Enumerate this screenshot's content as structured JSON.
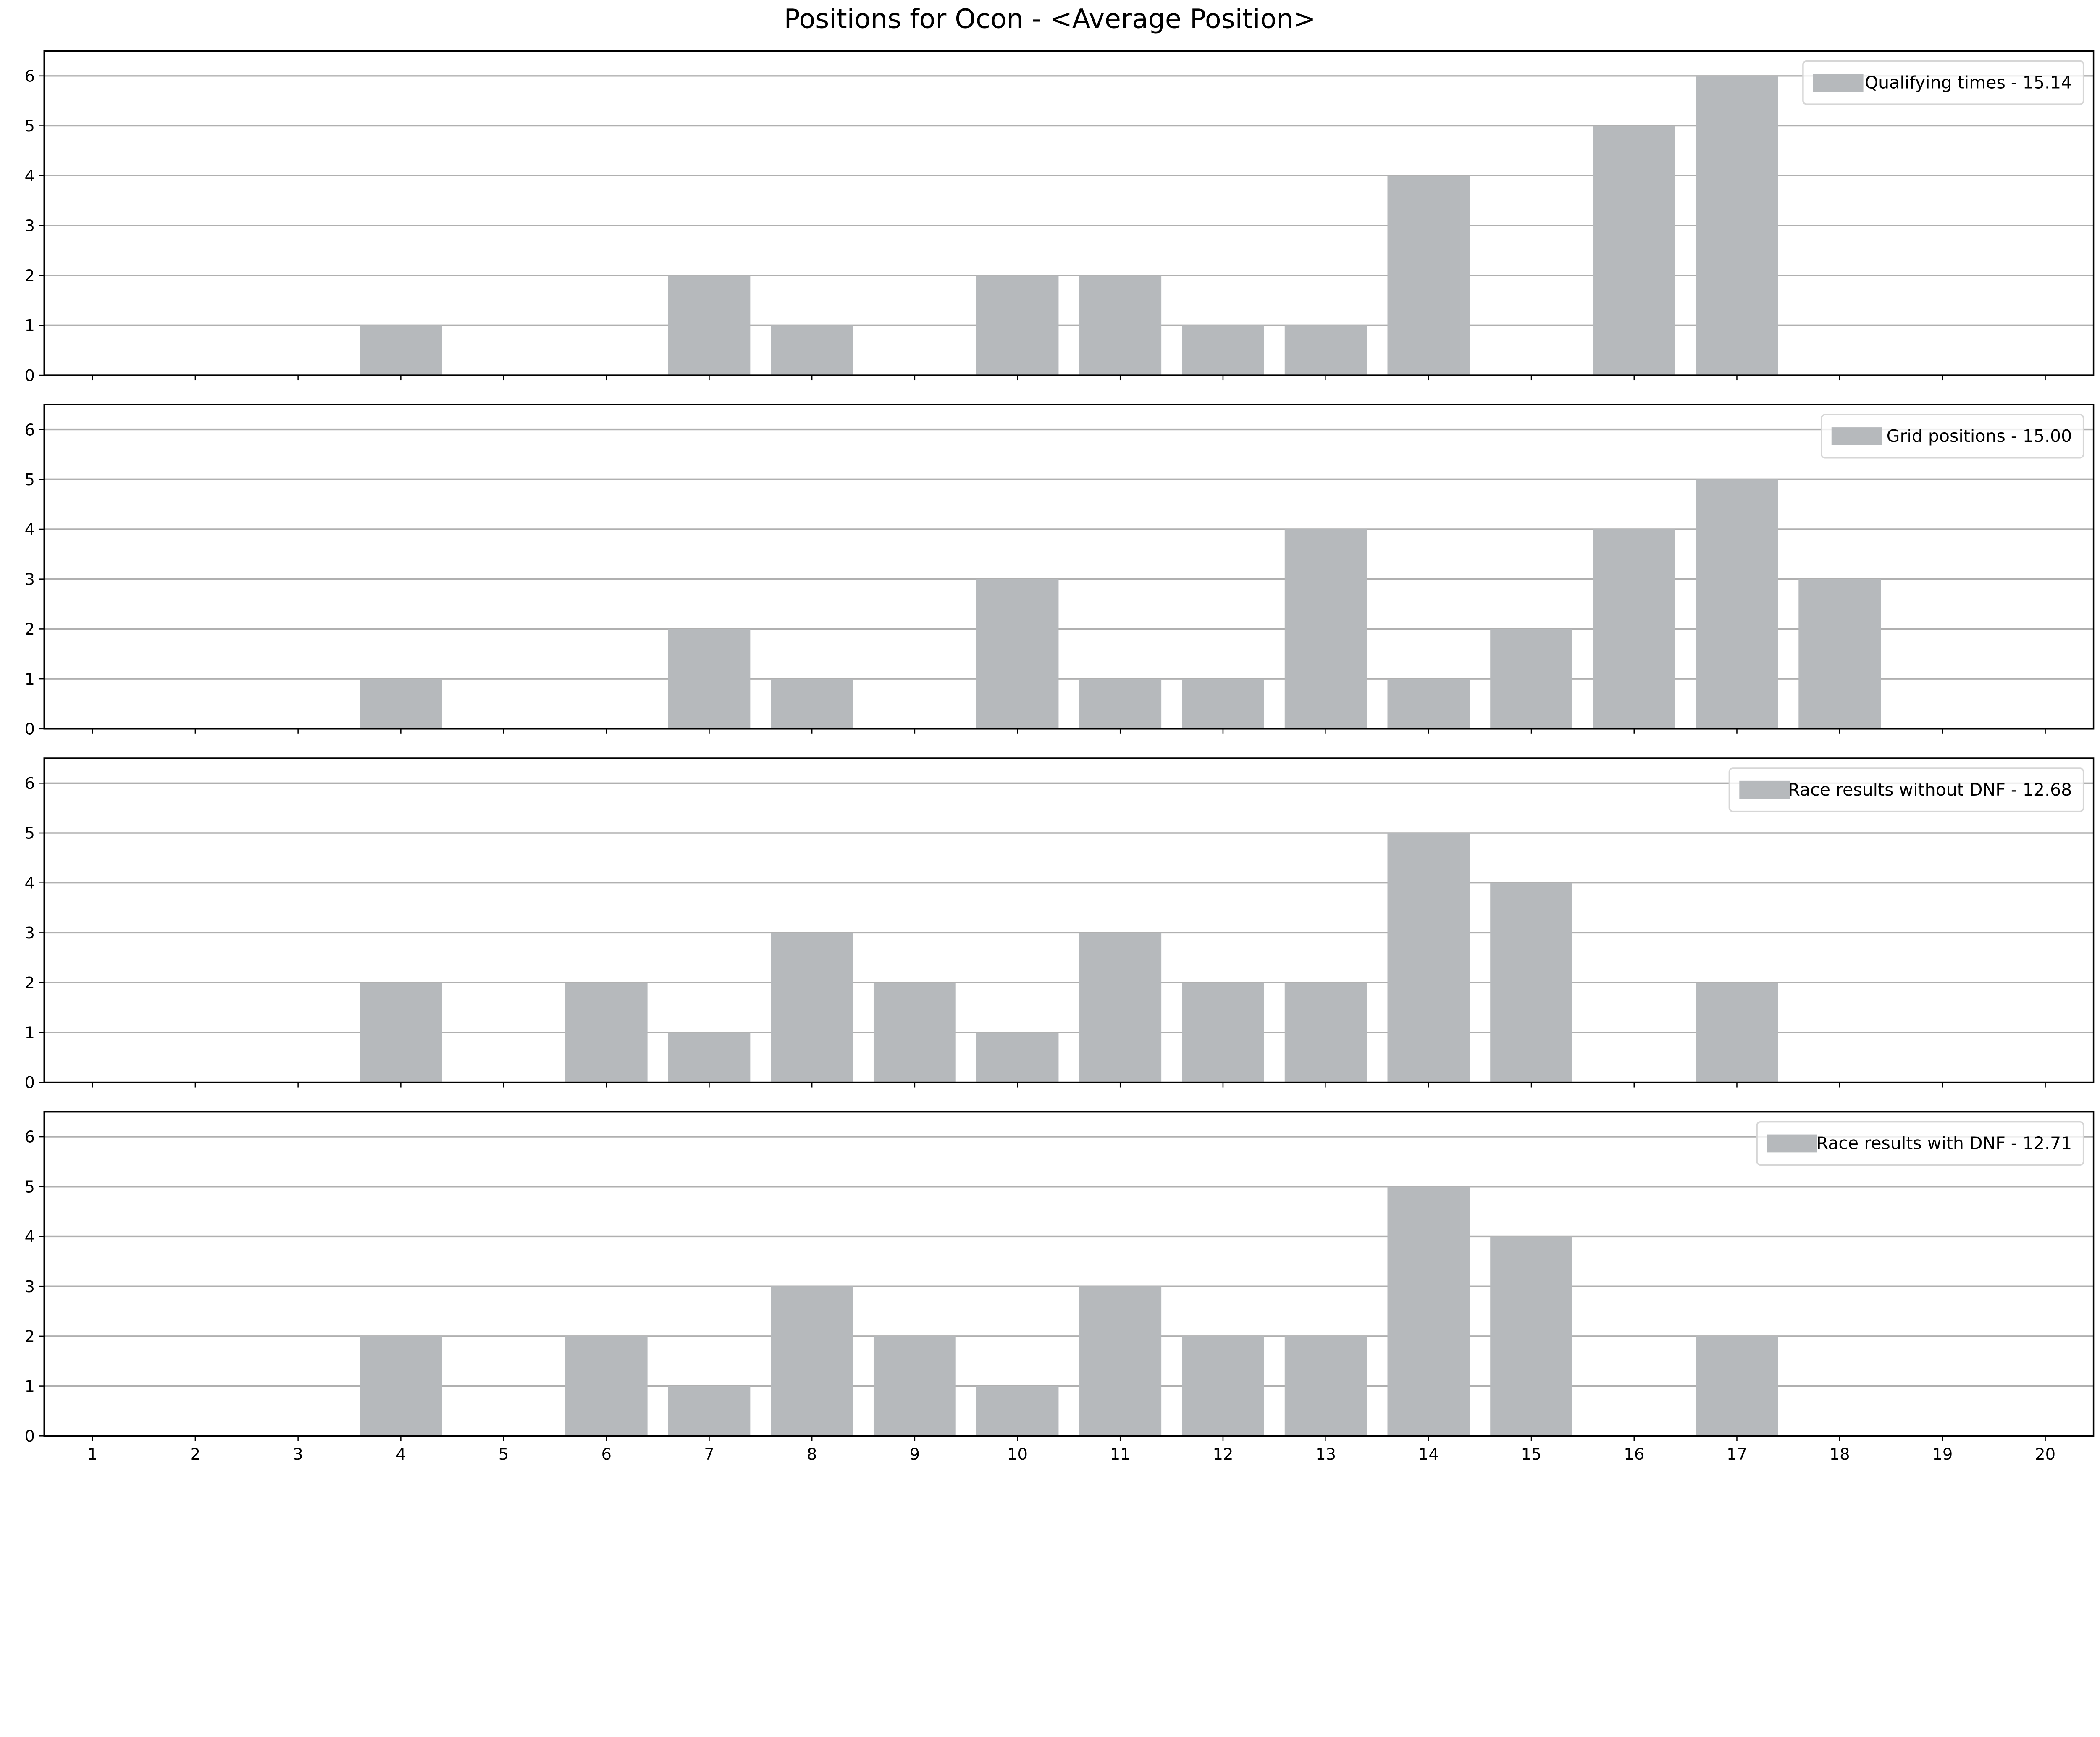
{
  "chart_data": {
    "title": "Positions for Ocon - <Average Position>",
    "type": "bar",
    "bar_color": "#b6b9bc",
    "grid": "horizontal",
    "legend_placement": "top-right",
    "xlim": [
      0.5,
      20.5
    ],
    "ylim": [
      0,
      6.5
    ],
    "x_ticks": [
      1,
      2,
      3,
      4,
      5,
      6,
      7,
      8,
      9,
      10,
      11,
      12,
      13,
      14,
      15,
      16,
      17,
      18,
      19,
      20
    ],
    "y_ticks": [
      0,
      1,
      2,
      3,
      4,
      5,
      6
    ],
    "panels": [
      {
        "legend": "Qualifying times - 15.14",
        "values": [
          0,
          0,
          0,
          1,
          0,
          0,
          2,
          1,
          0,
          2,
          2,
          1,
          1,
          4,
          0,
          5,
          6,
          0,
          0,
          0
        ]
      },
      {
        "legend": "Grid positions - 15.00",
        "values": [
          0,
          0,
          0,
          1,
          0,
          0,
          2,
          1,
          0,
          3,
          1,
          1,
          4,
          1,
          2,
          4,
          5,
          3,
          0,
          0
        ]
      },
      {
        "legend": "Race results without DNF - 12.68",
        "values": [
          0,
          0,
          0,
          2,
          0,
          2,
          1,
          3,
          2,
          1,
          3,
          2,
          2,
          5,
          4,
          0,
          2,
          0,
          0,
          0
        ]
      },
      {
        "legend": "Race results with DNF - 12.71",
        "values": [
          0,
          0,
          0,
          2,
          0,
          2,
          1,
          3,
          2,
          1,
          3,
          2,
          2,
          5,
          4,
          0,
          2,
          0,
          0,
          0
        ]
      }
    ]
  }
}
